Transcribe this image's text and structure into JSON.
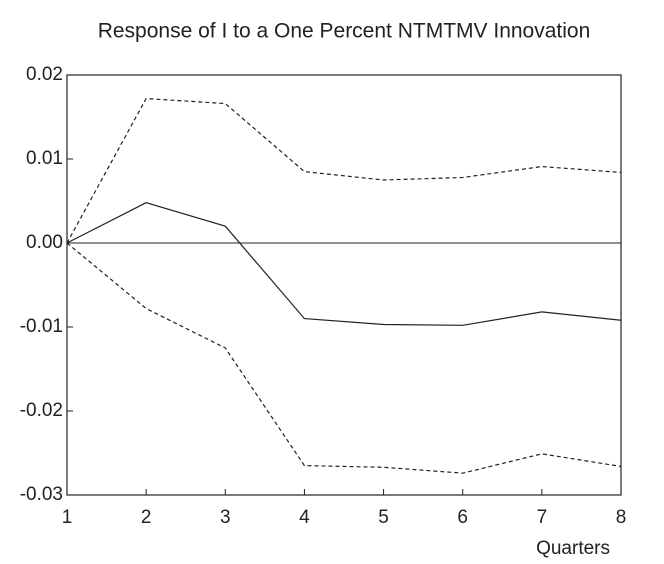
{
  "chart_data": {
    "type": "line",
    "title": "Response of I to a One Percent NTMTMV Innovation",
    "x_label": "Quarters",
    "x": [
      1,
      2,
      3,
      4,
      5,
      6,
      7,
      8
    ],
    "xlim": [
      1,
      8
    ],
    "xticks": [
      1,
      2,
      3,
      4,
      5,
      6,
      7,
      8
    ],
    "ylim": [
      -0.03,
      0.02
    ],
    "yticks": [
      0.02,
      0.01,
      {
        "value": 0,
        "label": "0.00"
      },
      -0.01,
      -0.02,
      -0.03
    ],
    "zero_line": true,
    "series": [
      {
        "color": "#222222",
        "dashed": false,
        "values": [
          0,
          0.0048,
          0.002,
          -0.009,
          -0.0097,
          -0.0098,
          -0.0082,
          -0.0092
        ]
      },
      {
        "color": "#222222",
        "dashed": true,
        "values": [
          0,
          0.0172,
          0.0166,
          0.0085,
          0.0075,
          0.0078,
          0.0091,
          0.0084
        ]
      },
      {
        "color": "#222222",
        "dashed": true,
        "values": [
          0,
          -0.0078,
          -0.0125,
          -0.0265,
          -0.0267,
          -0.0274,
          -0.0251,
          -0.0266
        ]
      }
    ]
  }
}
